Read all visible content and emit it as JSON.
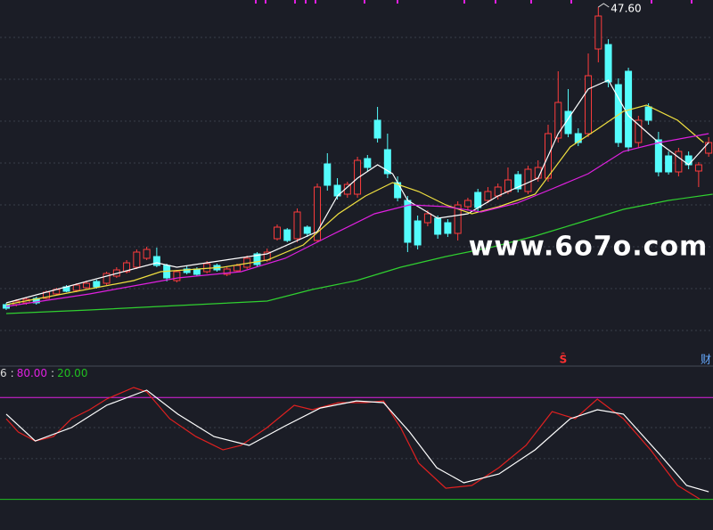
{
  "chart_data": [
    {
      "type": "candlestick",
      "xlim": [
        -0.62,
        70.43
      ],
      "ylim": [
        8.4,
        48.4
      ],
      "grid_values": [
        44.2,
        39.5,
        34.8,
        30.1,
        25.4,
        20.7,
        16.0,
        11.3
      ],
      "up_color": "#ff3c3c",
      "down_color": "#54fcfc",
      "open": [
        14.2,
        14.2,
        14.4,
        14.9,
        14.9,
        15.4,
        16.2,
        15.8,
        16.1,
        16.8,
        16.6,
        17.4,
        17.9,
        18.4,
        19.4,
        19.6,
        18.6,
        16.9,
        18.2,
        18.2,
        17.9,
        18.6,
        17.6,
        18.0,
        18.4,
        19.9,
        19.2,
        21.6,
        22.6,
        21.6,
        22.9,
        21.4,
        30.0,
        27.6,
        26.6,
        26.6,
        30.6,
        34.9,
        31.6,
        27.9,
        25.9,
        23.6,
        23.4,
        23.9,
        23.4,
        22.2,
        25.2,
        26.8,
        25.9,
        26.4,
        26.9,
        28.8,
        26.9,
        28.4,
        28.4,
        32.9,
        35.9,
        33.4,
        33.4,
        42.9,
        43.4,
        38.9,
        40.4,
        32.4,
        36.4,
        32.7,
        30.9,
        29.1,
        30.9,
        29.2,
        31.2
      ],
      "high": [
        14.4,
        14.8,
        15.0,
        15.1,
        15.8,
        16.1,
        16.4,
        16.6,
        16.9,
        17.0,
        17.9,
        18.4,
        19.2,
        20.4,
        20.7,
        20.6,
        18.8,
        18.1,
        18.5,
        18.4,
        19.1,
        18.8,
        18.4,
        18.8,
        19.7,
        20.1,
        20.5,
        23.2,
        22.8,
        25.0,
        23.1,
        27.8,
        31.2,
        28.4,
        28.0,
        30.8,
        31.0,
        36.4,
        33.4,
        28.6,
        26.4,
        24.2,
        24.8,
        24.2,
        23.8,
        25.8,
        26.2,
        27.2,
        27.4,
        27.8,
        29.6,
        29.2,
        29.8,
        30.4,
        34.4,
        40.4,
        38.4,
        34.0,
        42.4,
        47.6,
        44.0,
        39.6,
        40.8,
        35.4,
        36.8,
        33.6,
        31.4,
        31.8,
        31.4,
        30.2,
        33.0
      ],
      "low": [
        13.6,
        14.0,
        14.2,
        14.2,
        14.8,
        15.3,
        15.6,
        15.6,
        16.0,
        16.0,
        16.4,
        17.2,
        17.7,
        18.2,
        19.2,
        18.4,
        16.8,
        16.7,
        17.6,
        17.4,
        17.7,
        17.9,
        17.4,
        17.8,
        18.2,
        18.5,
        19.0,
        21.4,
        21.2,
        21.2,
        21.8,
        21.2,
        27.0,
        26.0,
        26.2,
        26.2,
        29.2,
        32.4,
        28.4,
        25.8,
        20.1,
        20.4,
        23.0,
        21.6,
        21.8,
        21.4,
        24.8,
        24.6,
        25.6,
        26.0,
        26.6,
        26.8,
        26.6,
        28.0,
        28.0,
        32.4,
        33.0,
        32.0,
        33.0,
        41.4,
        38.6,
        31.9,
        31.4,
        31.8,
        34.4,
        28.6,
        28.8,
        28.6,
        29.4,
        27.4,
        30.8
      ],
      "close": [
        13.8,
        14.6,
        14.8,
        14.4,
        15.6,
        15.9,
        15.7,
        16.4,
        16.6,
        16.2,
        17.7,
        18.1,
        18.9,
        20.1,
        20.4,
        18.6,
        17.2,
        17.9,
        17.8,
        17.6,
        18.8,
        18.1,
        18.2,
        18.6,
        19.4,
        18.7,
        20.1,
        22.9,
        21.4,
        24.6,
        22.2,
        27.4,
        27.6,
        26.4,
        27.7,
        30.4,
        29.6,
        32.9,
        28.9,
        26.2,
        21.2,
        20.9,
        24.4,
        22.1,
        22.2,
        25.4,
        25.9,
        25.1,
        26.9,
        27.4,
        28.2,
        27.2,
        29.4,
        29.6,
        33.4,
        36.9,
        33.4,
        32.4,
        39.9,
        46.6,
        39.2,
        32.4,
        31.9,
        34.9,
        34.9,
        29.1,
        29.1,
        31.4,
        29.9,
        29.9,
        32.4
      ],
      "max_label": "47.60",
      "lines": [
        {
          "color": "#ffffff",
          "x": [
            0,
            15,
            17,
            26,
            31,
            33,
            35,
            37,
            38.5,
            40,
            43,
            46,
            49,
            53,
            55,
            58,
            60,
            62,
            65,
            68,
            70
          ],
          "values": [
            14.4,
            18.9,
            18.4,
            19.9,
            22.4,
            26.4,
            28.4,
            29.9,
            28.9,
            25.9,
            23.9,
            24.4,
            26.4,
            28.4,
            33.4,
            38.4,
            39.4,
            35.4,
            32.4,
            29.9,
            32.4
          ]
        },
        {
          "color": "#f0e040",
          "x": [
            0,
            12.7,
            15.4,
            21.6,
            26,
            29.6,
            33.1,
            35.8,
            38.5,
            41.1,
            43.8,
            46.4,
            49.1,
            52.7,
            56.2,
            58.9,
            61.5,
            63.8,
            66.9,
            69.5
          ],
          "values": [
            14.2,
            16.9,
            17.9,
            18.4,
            19.2,
            20.9,
            24.4,
            26.4,
            27.9,
            26.9,
            25.4,
            24.4,
            25.2,
            26.6,
            31.9,
            33.9,
            35.9,
            36.6,
            34.9,
            32.4
          ]
        },
        {
          "color": "#e020e0",
          "x": [
            0,
            8.3,
            17.1,
            23.4,
            27.8,
            32.2,
            36.7,
            40.2,
            43.8,
            47.3,
            50.9,
            54.4,
            58,
            61.5,
            65.1,
            70
          ],
          "values": [
            14.0,
            15.4,
            17.2,
            17.9,
            19.4,
            21.9,
            24.4,
            25.4,
            25.2,
            24.6,
            25.6,
            27.2,
            28.9,
            31.4,
            32.4,
            33.4
          ]
        },
        {
          "color": "#30d030",
          "x": [
            0,
            8.3,
            17.1,
            26,
            30.5,
            34.9,
            39.3,
            43.8,
            48.2,
            52.7,
            57.1,
            61.5,
            66,
            70.4
          ],
          "values": [
            13.2,
            13.6,
            14.1,
            14.6,
            15.9,
            16.9,
            18.4,
            19.6,
            20.6,
            21.9,
            23.4,
            24.9,
            25.9,
            26.6
          ]
        }
      ],
      "watermark": "www.6o7o.com",
      "annotations": [
        "Ŝ",
        "财"
      ]
    },
    {
      "type": "line",
      "xlim": [
        -0.62,
        70.43
      ],
      "ylim": [
        2,
        99
      ],
      "indicator_name": "6",
      "separator": ":",
      "levels": [
        {
          "value": 80,
          "label": "80.00",
          "color": "#e020e0"
        },
        {
          "value": 20,
          "label": "20.00",
          "color": "#20c020"
        }
      ],
      "grid_values": [
        62.3,
        44
      ],
      "lines": [
        {
          "color": "#e02020",
          "x": [
            0,
            1.2,
            2.9,
            4.7,
            6.5,
            8.3,
            10,
            12.7,
            14,
            16.3,
            18.9,
            21.6,
            23.4,
            26,
            28.7,
            30.5,
            33.1,
            35.8,
            37.6,
            39.3,
            41.1,
            43.8,
            46.4,
            49.1,
            51.8,
            54.4,
            56.7,
            58.9,
            61.5,
            64.2,
            66.9,
            69.1
          ],
          "values": [
            67.5,
            59.7,
            54.4,
            57.0,
            67.5,
            72.8,
            79.1,
            85.9,
            83.3,
            67.5,
            57.0,
            49.2,
            51.8,
            62.3,
            75.4,
            72.8,
            77.0,
            77.0,
            78.0,
            62.3,
            41.3,
            26.6,
            28.2,
            38.7,
            51.8,
            71.7,
            67.5,
            79.1,
            67.5,
            49.2,
            28.2,
            20.3
          ]
        },
        {
          "color": "#ffffff",
          "x": [
            0,
            2.9,
            6.5,
            10,
            14,
            17.1,
            20.7,
            24.2,
            27.8,
            31.3,
            34.9,
            37.6,
            40.2,
            42.9,
            45.6,
            49.1,
            52.7,
            56.2,
            58.9,
            61.5,
            65.1,
            67.8,
            70
          ],
          "values": [
            70.2,
            54.4,
            62.3,
            75.4,
            84.3,
            70.2,
            57.0,
            51.8,
            63.3,
            73.8,
            78.0,
            77.0,
            59.7,
            38.7,
            29.8,
            35.0,
            49.2,
            67.5,
            72.8,
            70.2,
            46.6,
            28.2,
            24.5
          ]
        }
      ]
    }
  ]
}
